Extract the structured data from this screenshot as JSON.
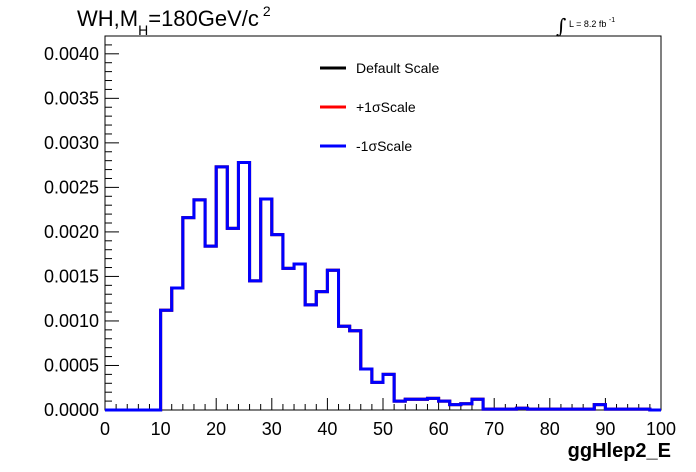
{
  "title": {
    "main": "WH,M",
    "subscript": "H",
    "rest": "=180GeV/c",
    "superscript": "2"
  },
  "luminosity": {
    "integral": "∫",
    "label": "L = 8.2 fb",
    "superscript": "-1"
  },
  "chart_data": {
    "type": "line",
    "xlabel": "ggHlep2_E",
    "ylabel": "",
    "xlim": [
      0,
      100
    ],
    "ylim": [
      0,
      0.0042
    ],
    "xticks": [
      0,
      10,
      20,
      30,
      40,
      50,
      60,
      70,
      80,
      90,
      100
    ],
    "xtick_labels": [
      "0",
      "10",
      "20",
      "30",
      "40",
      "50",
      "60",
      "70",
      "80",
      "90",
      "100"
    ],
    "yticks": [
      0,
      0.0005,
      0.001,
      0.0015,
      0.002,
      0.0025,
      0.003,
      0.0035,
      0.004
    ],
    "ytick_labels": [
      "0.0000",
      "0.0005",
      "0.0010",
      "0.0015",
      "0.0020",
      "0.0025",
      "0.0030",
      "0.0035",
      "0.0040"
    ],
    "bin_edges": [
      0,
      2,
      4,
      6,
      8,
      10,
      12,
      14,
      16,
      18,
      20,
      22,
      24,
      26,
      28,
      30,
      32,
      34,
      36,
      38,
      40,
      42,
      44,
      46,
      48,
      50,
      52,
      54,
      56,
      58,
      60,
      62,
      64,
      66,
      68,
      70,
      72,
      74,
      76,
      78,
      80,
      82,
      84,
      86,
      88,
      90,
      92,
      94,
      96,
      98,
      100
    ],
    "series": [
      {
        "name": "Default Scale",
        "color": "#000000",
        "values": [
          0,
          0,
          0,
          0,
          0,
          0.00112,
          0.00137,
          0.00216,
          0.00236,
          0.00184,
          0.00273,
          0.00204,
          0.00278,
          0.00145,
          0.00237,
          0.00197,
          0.00159,
          0.00164,
          0.00118,
          0.00133,
          0.00157,
          0.00094,
          0.00089,
          0.00046,
          0.00031,
          0.0004,
          0.0001,
          0.00012,
          0.00012,
          0.00013,
          0.0001,
          6e-05,
          7e-05,
          0.00012,
          1e-05,
          1e-05,
          1e-05,
          2e-05,
          1e-05,
          1e-05,
          1e-05,
          1e-05,
          1e-05,
          1e-05,
          6e-05,
          1e-05,
          1e-05,
          1e-05,
          1e-05,
          0
        ]
      },
      {
        "name": "+1σScale",
        "color": "#ff0000",
        "values": [
          0,
          0,
          0,
          0,
          0,
          0.00112,
          0.00137,
          0.00216,
          0.00236,
          0.00184,
          0.00273,
          0.00204,
          0.00278,
          0.00145,
          0.00237,
          0.00197,
          0.00159,
          0.00164,
          0.00118,
          0.00133,
          0.00157,
          0.00094,
          0.00089,
          0.00046,
          0.00031,
          0.0004,
          0.0001,
          0.00012,
          0.00012,
          0.00013,
          0.0001,
          6e-05,
          7e-05,
          0.00012,
          1e-05,
          1e-05,
          1e-05,
          2e-05,
          1e-05,
          1e-05,
          1e-05,
          1e-05,
          1e-05,
          1e-05,
          6e-05,
          1e-05,
          1e-05,
          1e-05,
          1e-05,
          0
        ]
      },
      {
        "name": "-1σScale",
        "color": "#0000ff",
        "values": [
          0,
          0,
          0,
          0,
          0,
          0.00112,
          0.00137,
          0.00216,
          0.00236,
          0.00184,
          0.00273,
          0.00204,
          0.00278,
          0.00145,
          0.00237,
          0.00197,
          0.00159,
          0.00164,
          0.00118,
          0.00133,
          0.00157,
          0.00094,
          0.00089,
          0.00046,
          0.00031,
          0.0004,
          0.0001,
          0.00012,
          0.00012,
          0.00013,
          0.0001,
          6e-05,
          7e-05,
          0.00012,
          1e-05,
          1e-05,
          1e-05,
          2e-05,
          1e-05,
          1e-05,
          1e-05,
          1e-05,
          1e-05,
          1e-05,
          6e-05,
          1e-05,
          1e-05,
          1e-05,
          1e-05,
          0
        ]
      }
    ],
    "legend": {
      "placement": "top-center",
      "entries": [
        "Default Scale",
        "+1σScale",
        "-1σScale"
      ]
    },
    "grid": false
  }
}
